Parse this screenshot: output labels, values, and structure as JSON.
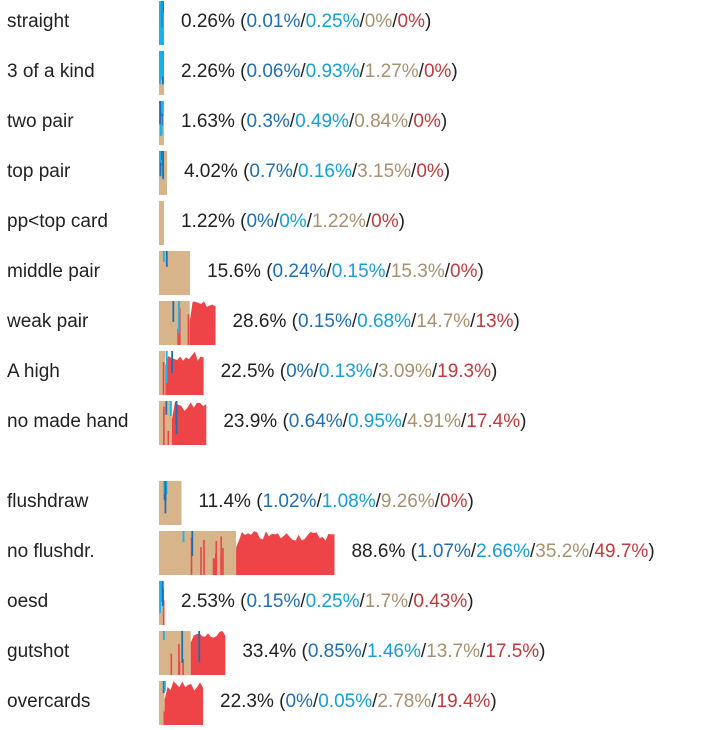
{
  "chart_data": {
    "type": "bar",
    "colors": {
      "dark_blue": "#1f6fb4",
      "light_blue": "#14b4ec",
      "tan": "#d7b48a",
      "red": "#ee4447",
      "label_text": "#222222",
      "paren_text": "#222222"
    },
    "groups": [
      {
        "rows": [
          {
            "category": "straight",
            "total": "0.26%",
            "values": [
              "0.01%",
              "0.25%",
              "0%",
              "0%"
            ]
          },
          {
            "category": "3 of a kind",
            "total": "2.26%",
            "values": [
              "0.06%",
              "0.93%",
              "1.27%",
              "0%"
            ]
          },
          {
            "category": "two pair",
            "total": "1.63%",
            "values": [
              "0.3%",
              "0.49%",
              "0.84%",
              "0%"
            ]
          },
          {
            "category": "top pair",
            "total": "4.02%",
            "values": [
              "0.7%",
              "0.16%",
              "3.15%",
              "0%"
            ]
          },
          {
            "category": "pp<top card",
            "total": "1.22%",
            "values": [
              "0%",
              "0%",
              "1.22%",
              "0%"
            ]
          },
          {
            "category": "middle pair",
            "total": "15.6%",
            "values": [
              "0.24%",
              "0.15%",
              "15.3%",
              "0%"
            ]
          },
          {
            "category": "weak pair",
            "total": "28.6%",
            "values": [
              "0.15%",
              "0.68%",
              "14.7%",
              "13%"
            ]
          },
          {
            "category": "A high",
            "total": "22.5%",
            "values": [
              "0%",
              "0.13%",
              "3.09%",
              "19.3%"
            ]
          },
          {
            "category": "no made hand",
            "total": "23.9%",
            "values": [
              "0.64%",
              "0.95%",
              "4.91%",
              "17.4%"
            ]
          }
        ]
      },
      {
        "rows": [
          {
            "category": "flushdraw",
            "total": "11.4%",
            "values": [
              "1.02%",
              "1.08%",
              "9.26%",
              "0%"
            ]
          },
          {
            "category": "no flushdr.",
            "total": "88.6%",
            "values": [
              "1.07%",
              "2.66%",
              "35.2%",
              "49.7%"
            ]
          },
          {
            "category": "oesd",
            "total": "2.53%",
            "values": [
              "0.15%",
              "0.25%",
              "1.7%",
              "0.43%"
            ]
          },
          {
            "category": "gutshot",
            "total": "33.4%",
            "values": [
              "0.85%",
              "1.46%",
              "13.7%",
              "17.5%"
            ]
          },
          {
            "category": "overcards",
            "total": "22.3%",
            "values": [
              "0%",
              "0.05%",
              "2.78%",
              "19.4%"
            ]
          }
        ]
      }
    ]
  }
}
